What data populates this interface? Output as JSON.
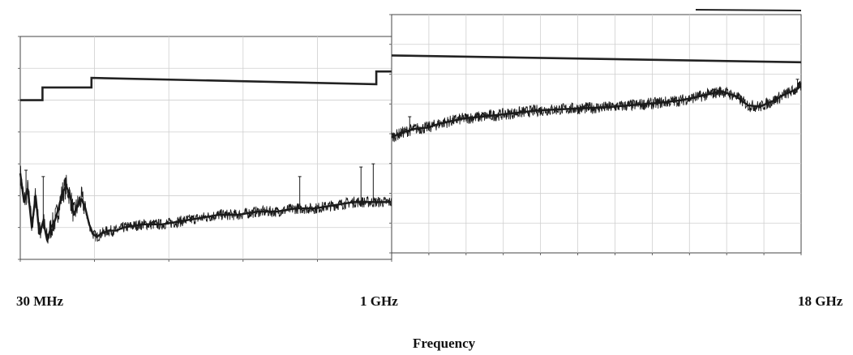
{
  "labels": {
    "start_freq": "30 MHz",
    "mid_freq": "1 GHz",
    "end_freq": "18 GHz",
    "x_axis_title": "Frequency"
  },
  "colors": {
    "trace": "#1a1a1a",
    "limit": "#222222",
    "grid": "#cfcfcf",
    "frame": "#444444"
  },
  "chart_data": [
    {
      "type": "line",
      "x_scale": "linear",
      "x_unit": "MHz",
      "xlim": [
        30,
        1000
      ],
      "ylim": [
        0,
        70
      ],
      "grid": true,
      "series": [
        {
          "role": "limit",
          "x": [
            30,
            88,
            88,
            216,
            216,
            960,
            960,
            1000
          ],
          "y": [
            50,
            50,
            54,
            54,
            57,
            55,
            59,
            59
          ]
        },
        {
          "role": "emissions",
          "x": [
            30,
            40,
            50,
            60,
            70,
            80,
            90,
            100,
            110,
            120,
            130,
            140,
            150,
            160,
            170,
            180,
            190,
            200,
            210,
            220,
            230,
            240,
            260,
            280,
            300,
            350,
            400,
            450,
            500,
            550,
            600,
            650,
            700,
            750,
            800,
            850,
            900,
            950,
            1000
          ],
          "y": [
            27,
            18,
            22,
            10,
            20,
            8,
            12,
            6,
            10,
            12,
            16,
            21,
            23,
            20,
            14,
            17,
            19,
            16,
            11,
            8,
            7,
            8,
            9,
            9,
            10,
            11,
            11,
            12,
            13,
            14,
            14,
            15,
            15,
            16,
            16,
            17,
            18,
            18,
            18
          ]
        }
      ],
      "peaks": [
        {
          "x": 45,
          "y": 28
        },
        {
          "x": 90,
          "y": 26
        },
        {
          "x": 760,
          "y": 26
        },
        {
          "x": 920,
          "y": 29
        },
        {
          "x": 952,
          "y": 30
        }
      ]
    },
    {
      "type": "line",
      "x_scale": "linear",
      "x_unit": "GHz",
      "xlim": [
        1,
        18
      ],
      "ylim": [
        30,
        100
      ],
      "grid": true,
      "series": [
        {
          "role": "limit",
          "x": [
            1,
            18
          ],
          "y": [
            88,
            86
          ]
        },
        {
          "role": "emissions",
          "x": [
            1,
            1.5,
            2,
            2.5,
            3,
            4,
            5,
            6,
            7,
            8,
            9,
            10,
            11,
            12,
            13,
            14,
            14.7,
            15.3,
            15.8,
            16.3,
            16.8,
            17.3,
            17.8,
            18
          ],
          "y": [
            64,
            65.5,
            66.5,
            66.8,
            68,
            69.5,
            70.2,
            71,
            71.8,
            72.2,
            72.5,
            72.8,
            73.4,
            74,
            74.8,
            76.3,
            77.5,
            76,
            73.3,
            73,
            74.5,
            76.5,
            78,
            79
          ]
        }
      ],
      "peaks": [
        {
          "x": 1.75,
          "y": 70
        },
        {
          "x": 14.4,
          "y": 78
        },
        {
          "x": 17.85,
          "y": 81
        }
      ]
    }
  ]
}
